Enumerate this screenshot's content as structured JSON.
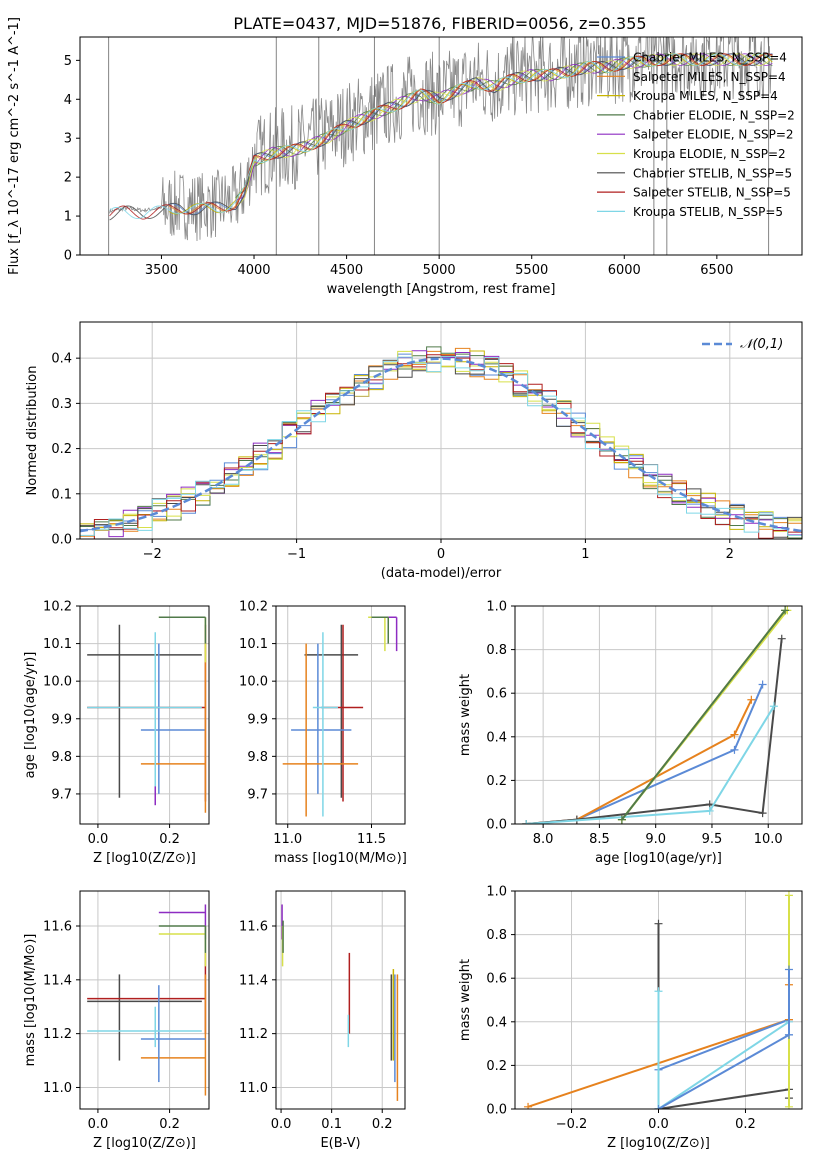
{
  "figure": {
    "title": "PLATE=0437, MJD=51876, FIBERID=0056, z=0.355"
  },
  "colors": {
    "chabrier_miles": "#5b8ad6",
    "salpeter_miles": "#e6821e",
    "kroupa_miles": "#c8b400",
    "chabrier_elodie": "#507a4a",
    "salpeter_elodie": "#8e2cc2",
    "kroupa_elodie": "#d7e04a",
    "chabrier_stelib": "#4a4a4a",
    "salpeter_stelib": "#b01f1f",
    "kroupa_stelib": "#7fd6e6",
    "observed": "#888888",
    "gaussian": "#5b8ad6",
    "grid": "#c8c8c8"
  },
  "chart_data": [
    {
      "id": "spectrum",
      "type": "line",
      "xlabel": "wavelength [Angstrom, rest frame]",
      "ylabel": "Flux [f_λ 10^-17 erg cm^-2 s^-1 A^-1]",
      "xlim": [
        3060,
        6960
      ],
      "ylim": [
        0,
        5.6
      ],
      "xticks": [
        3500,
        4000,
        4500,
        5000,
        5500,
        6000,
        6500
      ],
      "yticks": [
        0,
        1,
        2,
        3,
        4,
        5
      ],
      "grid": false,
      "legend_position": "upper right",
      "legend": [
        {
          "label": "Chabrier MILES, N_SSP=4",
          "color": "chabrier_miles"
        },
        {
          "label": "Salpeter MILES, N_SSP=4",
          "color": "salpeter_miles"
        },
        {
          "label": "Kroupa MILES, N_SSP=4",
          "color": "kroupa_miles"
        },
        {
          "label": "Chabrier ELODIE, N_SSP=2",
          "color": "chabrier_elodie"
        },
        {
          "label": "Salpeter ELODIE, N_SSP=2",
          "color": "salpeter_elodie"
        },
        {
          "label": "Kroupa ELODIE, N_SSP=2",
          "color": "kroupa_elodie"
        },
        {
          "label": "Chabrier STELIB, N_SSP=5",
          "color": "chabrier_stelib"
        },
        {
          "label": "Salpeter STELIB, N_SSP=5",
          "color": "salpeter_stelib"
        },
        {
          "label": "Kroupa STELIB, N_SSP=5",
          "color": "kroupa_stelib"
        }
      ],
      "continuum": [
        [
          3200,
          1.1
        ],
        [
          3300,
          1.2
        ],
        [
          3400,
          1.15
        ],
        [
          3500,
          1.2
        ],
        [
          3600,
          1.3
        ],
        [
          3700,
          1.25
        ],
        [
          3800,
          1.3
        ],
        [
          3900,
          1.4
        ],
        [
          3950,
          1.7
        ],
        [
          4000,
          2.5
        ],
        [
          4100,
          2.7
        ],
        [
          4200,
          2.75
        ],
        [
          4300,
          2.9
        ],
        [
          4400,
          3.1
        ],
        [
          4500,
          3.4
        ],
        [
          4600,
          3.6
        ],
        [
          4700,
          3.8
        ],
        [
          4800,
          4.0
        ],
        [
          4900,
          4.2
        ],
        [
          5000,
          4.1
        ],
        [
          5100,
          4.3
        ],
        [
          5200,
          4.5
        ],
        [
          5300,
          4.4
        ],
        [
          5400,
          4.6
        ],
        [
          5500,
          4.7
        ],
        [
          5600,
          4.7
        ],
        [
          5700,
          4.8
        ],
        [
          5800,
          4.9
        ],
        [
          5900,
          4.9
        ],
        [
          6000,
          5.0
        ],
        [
          6200,
          5.1
        ],
        [
          6400,
          5.1
        ],
        [
          6600,
          5.1
        ],
        [
          6800,
          5.1
        ]
      ]
    },
    {
      "id": "residuals",
      "type": "histogram",
      "xlabel": "(data-model)/error",
      "ylabel": "Normed distribution",
      "xlim": [
        -2.5,
        2.5
      ],
      "ylim": [
        0,
        0.48
      ],
      "xticks": [
        -2,
        -1,
        0,
        1,
        2
      ],
      "yticks": [
        0.0,
        0.1,
        0.2,
        0.3,
        0.4
      ],
      "grid": true,
      "legend_position": "upper right",
      "gaussian_label": "𝒩(0,1)",
      "gaussian": {
        "mean": 0,
        "sigma": 1
      },
      "bin_width": 0.1
    },
    {
      "id": "age_vs_Z",
      "type": "errorbar",
      "xlabel": "Z [log10(Z/Z⊙)]",
      "ylabel": "age  [log10(age/yr)]",
      "xlim": [
        -0.05,
        0.31
      ],
      "ylim": [
        9.62,
        10.2
      ],
      "xticks": [
        0.0,
        0.2
      ],
      "yticks": [
        9.7,
        9.8,
        9.9,
        10.0,
        10.1,
        10.2
      ],
      "grid": true,
      "points": [
        {
          "s": "chabrier_stelib",
          "x": 0.06,
          "xlo": -0.03,
          "xhi": 0.29,
          "y": 10.07,
          "ylo": 9.69,
          "yhi": 10.15
        },
        {
          "s": "salpeter_stelib",
          "x": 0.3,
          "xlo": -0.03,
          "xhi": 0.3,
          "y": 9.93,
          "ylo": 9.68,
          "yhi": 10.15
        },
        {
          "s": "chabrier_miles",
          "x": 0.17,
          "xlo": 0.12,
          "xhi": 0.3,
          "y": 9.87,
          "ylo": 9.7,
          "yhi": 10.1
        },
        {
          "s": "salpeter_miles",
          "x": 0.3,
          "xlo": 0.12,
          "xhi": 0.3,
          "y": 9.78,
          "ylo": 9.65,
          "yhi": 10.1
        },
        {
          "s": "kroupa_stelib",
          "x": 0.16,
          "xlo": -0.03,
          "xhi": 0.29,
          "y": 9.93,
          "ylo": 9.7,
          "yhi": 10.13
        },
        {
          "s": "salpeter_elodie",
          "x": 0.16,
          "xlo": 0.16,
          "xhi": 0.16,
          "y": 9.7,
          "ylo": 9.67,
          "yhi": 9.72
        },
        {
          "s": "kroupa_elodie",
          "x": 0.3,
          "xlo": 0.17,
          "xhi": 0.3,
          "y": 10.17,
          "ylo": 10.05,
          "yhi": 10.17
        },
        {
          "s": "chabrier_elodie",
          "x": 0.3,
          "xlo": 0.17,
          "xhi": 0.3,
          "y": 10.17,
          "ylo": 10.1,
          "yhi": 10.17
        }
      ]
    },
    {
      "id": "age_vs_mass",
      "type": "errorbar",
      "xlabel": "mass [log10(M/M⊙)]",
      "ylabel": "",
      "xlim": [
        10.93,
        11.7
      ],
      "ylim": [
        9.62,
        10.2
      ],
      "xticks": [
        11.0,
        11.5
      ],
      "yticks": [
        9.7,
        9.8,
        9.9,
        10.0,
        10.1,
        10.2
      ],
      "grid": true,
      "points": [
        {
          "s": "chabrier_stelib",
          "x": 11.32,
          "xlo": 11.1,
          "xhi": 11.42,
          "y": 10.07,
          "ylo": 9.69,
          "yhi": 10.15
        },
        {
          "s": "salpeter_stelib",
          "x": 11.33,
          "xlo": 11.2,
          "xhi": 11.45,
          "y": 9.93,
          "ylo": 9.68,
          "yhi": 10.15
        },
        {
          "s": "chabrier_miles",
          "x": 11.18,
          "xlo": 11.02,
          "xhi": 11.38,
          "y": 9.87,
          "ylo": 9.7,
          "yhi": 10.1
        },
        {
          "s": "salpeter_miles",
          "x": 11.11,
          "xlo": 10.97,
          "xhi": 11.42,
          "y": 9.78,
          "ylo": 9.64,
          "yhi": 10.1
        },
        {
          "s": "kroupa_stelib",
          "x": 11.21,
          "xlo": 11.15,
          "xhi": 11.3,
          "y": 9.93,
          "ylo": 9.64,
          "yhi": 10.13
        },
        {
          "s": "salpeter_elodie",
          "x": 11.65,
          "xlo": 11.55,
          "xhi": 11.65,
          "y": 10.17,
          "ylo": 10.08,
          "yhi": 10.17
        },
        {
          "s": "kroupa_elodie",
          "x": 11.58,
          "xlo": 11.48,
          "xhi": 11.6,
          "y": 10.17,
          "ylo": 10.08,
          "yhi": 10.17
        },
        {
          "s": "chabrier_elodie",
          "x": 11.6,
          "xlo": 11.5,
          "xhi": 11.6,
          "y": 10.17,
          "ylo": 10.1,
          "yhi": 10.17
        }
      ]
    },
    {
      "id": "massweight_vs_age",
      "type": "line",
      "xlabel": "age  [log10(age/yr)]",
      "ylabel": "mass weight",
      "xlim": [
        7.75,
        10.3
      ],
      "ylim": [
        0,
        1.0
      ],
      "xticks": [
        8.0,
        8.5,
        9.0,
        9.5,
        10.0
      ],
      "yticks": [
        0.0,
        0.2,
        0.4,
        0.6,
        0.8,
        1.0
      ],
      "grid": true,
      "series": [
        {
          "s": "chabrier_miles",
          "x": [
            7.85,
            8.3,
            9.7,
            9.95
          ],
          "y": [
            0.0,
            0.02,
            0.34,
            0.64
          ]
        },
        {
          "s": "salpeter_miles",
          "x": [
            7.85,
            8.3,
            9.7,
            9.85
          ],
          "y": [
            0.0,
            0.02,
            0.41,
            0.57
          ]
        },
        {
          "s": "kroupa_miles",
          "x": [
            8.7,
            10.15
          ],
          "y": [
            0.02,
            0.98
          ]
        },
        {
          "s": "kroupa_elodie",
          "x": [
            8.7,
            10.17
          ],
          "y": [
            0.02,
            0.98
          ]
        },
        {
          "s": "chabrier_stelib",
          "x": [
            7.85,
            8.3,
            9.48,
            9.95,
            10.12
          ],
          "y": [
            0.0,
            0.02,
            0.09,
            0.05,
            0.85
          ]
        },
        {
          "s": "kroupa_stelib",
          "x": [
            7.85,
            9.48,
            10.05
          ],
          "y": [
            0.0,
            0.06,
            0.54
          ]
        },
        {
          "s": "chabrier_elodie",
          "x": [
            8.7,
            10.15
          ],
          "y": [
            0.02,
            0.98
          ]
        }
      ]
    },
    {
      "id": "mass_vs_Z",
      "type": "errorbar",
      "xlabel": "Z [log10(Z/Z⊙)]",
      "ylabel": "mass [log10(M/M⊙)]",
      "xlim": [
        -0.05,
        0.31
      ],
      "ylim": [
        10.92,
        11.73
      ],
      "xticks": [
        0.0,
        0.2
      ],
      "yticks": [
        11.0,
        11.2,
        11.4,
        11.6
      ],
      "grid": true,
      "points": [
        {
          "s": "chabrier_stelib",
          "x": 0.06,
          "xlo": -0.03,
          "xhi": 0.29,
          "y": 11.32,
          "ylo": 11.1,
          "yhi": 11.42
        },
        {
          "s": "salpeter_stelib",
          "x": 0.3,
          "xlo": -0.03,
          "xhi": 0.3,
          "y": 11.33,
          "ylo": 11.2,
          "yhi": 11.5
        },
        {
          "s": "salpeter_miles",
          "x": 0.3,
          "xlo": 0.12,
          "xhi": 0.3,
          "y": 11.11,
          "ylo": 10.97,
          "yhi": 11.42
        },
        {
          "s": "chabrier_miles",
          "x": 0.17,
          "xlo": 0.12,
          "xhi": 0.3,
          "y": 11.18,
          "ylo": 11.02,
          "yhi": 11.38
        },
        {
          "s": "kroupa_stelib",
          "x": 0.16,
          "xlo": -0.03,
          "xhi": 0.29,
          "y": 11.21,
          "ylo": 11.15,
          "yhi": 11.3
        },
        {
          "s": "salpeter_elodie",
          "x": 0.3,
          "xlo": 0.17,
          "xhi": 0.3,
          "y": 11.65,
          "ylo": 11.55,
          "yhi": 11.68
        },
        {
          "s": "kroupa_elodie",
          "x": 0.3,
          "xlo": 0.17,
          "xhi": 0.3,
          "y": 11.57,
          "ylo": 11.45,
          "yhi": 11.6
        },
        {
          "s": "chabrier_elodie",
          "x": 0.3,
          "xlo": 0.17,
          "xhi": 0.3,
          "y": 11.6,
          "ylo": 11.5,
          "yhi": 11.6
        }
      ]
    },
    {
      "id": "mass_vs_EBV",
      "type": "errorbar",
      "xlabel": "E(B-V)",
      "ylabel": "",
      "xlim": [
        -0.01,
        0.245
      ],
      "ylim": [
        10.92,
        11.73
      ],
      "xticks": [
        0.0,
        0.1,
        0.2
      ],
      "yticks": [
        11.0,
        11.2,
        11.4,
        11.6
      ],
      "grid": true,
      "points": [
        {
          "s": "salpeter_elodie",
          "x": 0.002,
          "xlo": 0.002,
          "xhi": 0.002,
          "y": 11.62,
          "ylo": 11.55,
          "yhi": 11.68
        },
        {
          "s": "kroupa_elodie",
          "x": 0.003,
          "xlo": 0.003,
          "xhi": 0.003,
          "y": 11.55,
          "ylo": 11.45,
          "yhi": 11.6
        },
        {
          "s": "chabrier_elodie",
          "x": 0.004,
          "xlo": 0.004,
          "xhi": 0.004,
          "y": 11.58,
          "ylo": 11.5,
          "yhi": 11.62
        },
        {
          "s": "salpeter_stelib",
          "x": 0.135,
          "xlo": 0.135,
          "xhi": 0.135,
          "y": 11.33,
          "ylo": 11.2,
          "yhi": 11.5
        },
        {
          "s": "kroupa_stelib",
          "x": 0.133,
          "xlo": 0.133,
          "xhi": 0.133,
          "y": 11.21,
          "ylo": 11.15,
          "yhi": 11.27
        },
        {
          "s": "chabrier_stelib",
          "x": 0.218,
          "xlo": 0.218,
          "xhi": 0.218,
          "y": 11.32,
          "ylo": 11.1,
          "yhi": 11.42
        },
        {
          "s": "salpeter_miles",
          "x": 0.23,
          "xlo": 0.23,
          "xhi": 0.23,
          "y": 11.11,
          "ylo": 10.95,
          "yhi": 11.42
        },
        {
          "s": "chabrier_miles",
          "x": 0.225,
          "xlo": 0.225,
          "xhi": 0.225,
          "y": 11.18,
          "ylo": 11.02,
          "yhi": 11.42
        },
        {
          "s": "kroupa_miles",
          "x": 0.222,
          "xlo": 0.222,
          "xhi": 0.222,
          "y": 11.25,
          "ylo": 11.1,
          "yhi": 11.44
        }
      ]
    },
    {
      "id": "massweight_vs_Z",
      "type": "line",
      "xlabel": "Z [log10(Z/Z⊙)]",
      "ylabel": "mass weight",
      "xlim": [
        -0.33,
        0.33
      ],
      "ylim": [
        0,
        1.0
      ],
      "xticks": [
        -0.2,
        0.0,
        0.2
      ],
      "yticks": [
        0.0,
        0.2,
        0.4,
        0.6,
        0.8,
        1.0
      ],
      "grid": true,
      "series": [
        {
          "s": "salpeter_miles",
          "x": [
            -0.3,
            0.3
          ],
          "y": [
            0.01,
            0.41
          ]
        },
        {
          "s": "chabrier_miles",
          "x": [
            0.0,
            0.3
          ],
          "y": [
            0.18,
            0.41
          ]
        },
        {
          "s": "chabrier_stelib",
          "x": [
            0.0,
            0.0,
            0.3,
            0.3
          ],
          "y": [
            0.85,
            0.0,
            0.09,
            0.05
          ]
        },
        {
          "s": "kroupa_stelib",
          "x": [
            0.0,
            0.0,
            0.3
          ],
          "y": [
            0.54,
            0.0,
            0.4
          ]
        },
        {
          "s": "kroupa_elodie",
          "x": [
            0.3,
            0.3
          ],
          "y": [
            0.01,
            0.98
          ]
        },
        {
          "s": "chabrier_miles",
          "x": [
            0.0,
            0.3
          ],
          "y": [
            0.0,
            0.34
          ]
        },
        {
          "s": "salpeter_miles",
          "x": [
            0.3,
            0.3
          ],
          "y": [
            0.41,
            0.57
          ]
        },
        {
          "s": "chabrier_miles",
          "x": [
            0.3,
            0.3
          ],
          "y": [
            0.34,
            0.64
          ]
        }
      ]
    }
  ]
}
